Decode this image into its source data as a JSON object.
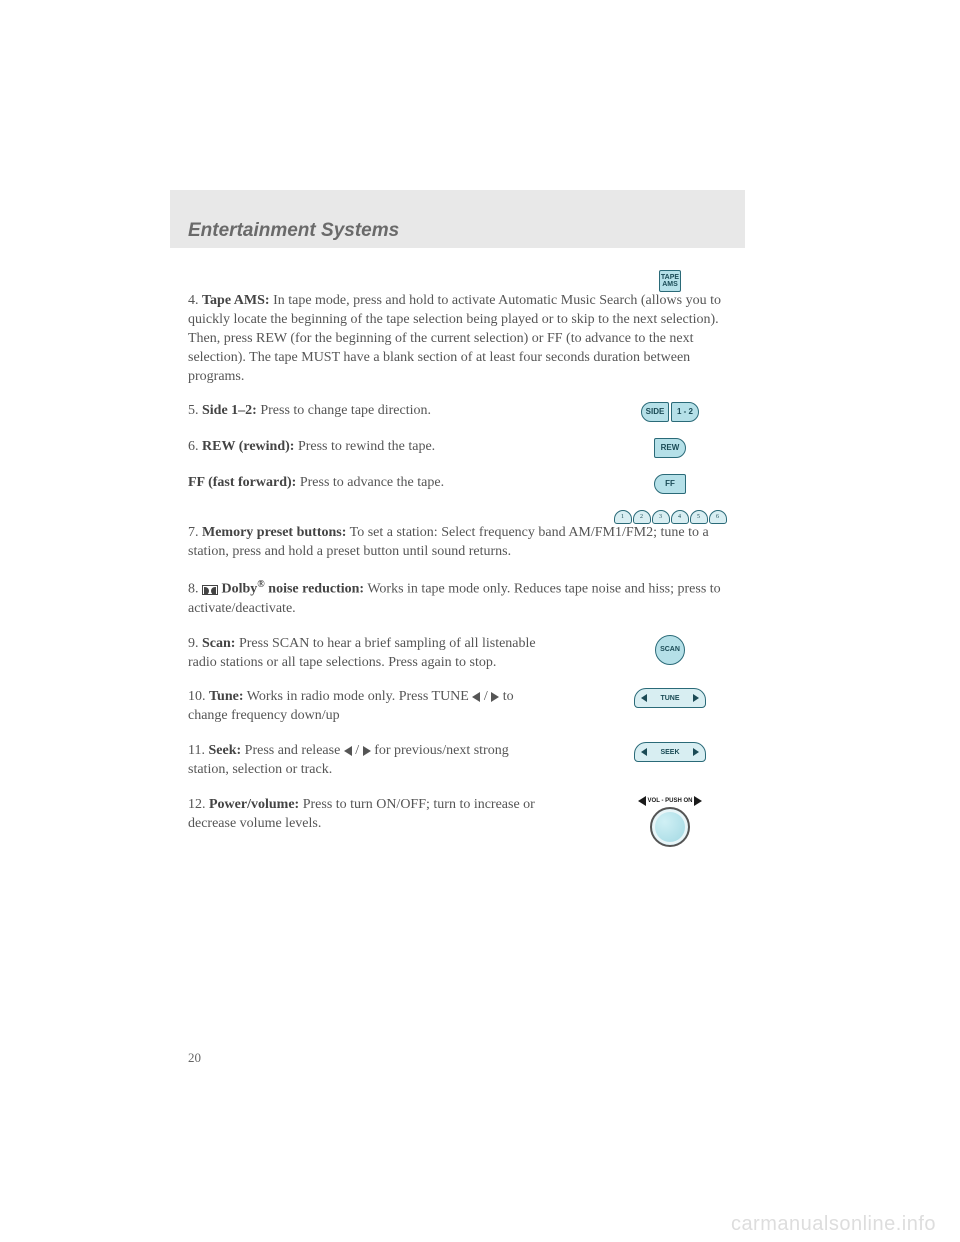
{
  "header": {
    "title": "Entertainment Systems"
  },
  "page_number": "20",
  "watermark": "carmanualsonline.info",
  "colors": {
    "header_bg": "#e8e8e8",
    "header_text": "#6a6a6a",
    "body_text": "#555555",
    "button_bg": "#b5e0e8",
    "button_border": "#2a6a78",
    "watermark": "#dddddd"
  },
  "items": [
    {
      "num": "4.",
      "label": "Tape AMS:",
      "text_a": " In tape mode, press and hold to activate Automatic Music Search (allows you to quickly locate the beginning of the tape selection being played or to skip to the next selection). Then, press REW (for the beginning of the current selection) or FF (to advance to the next selection). The tape MUST have a blank section of at least four seconds duration between programs.",
      "icon": "ams",
      "icon_label": "TAPE AMS"
    },
    {
      "num": "5.",
      "label": "Side 1–2:",
      "text_a": " Press to change tape direction.",
      "icon": "side",
      "icon_label_a": "SIDE",
      "icon_label_b": "1 - 2"
    },
    {
      "num": "6.",
      "label": "REW (rewind):",
      "text_a": " Press to rewind the tape.",
      "icon": "rew",
      "icon_label": "REW"
    },
    {
      "num": "",
      "label": "FF (fast forward):",
      "text_a": " Press to advance the tape.",
      "icon": "ff",
      "icon_label": "FF"
    },
    {
      "num": "7.",
      "label": "Memory preset buttons:",
      "text_a": " To set a station: Select frequency band AM/FM1/FM2; tune to a station, press and hold a preset button until sound returns.",
      "icon": "presets",
      "preset_labels": [
        "1",
        "2",
        "3",
        "4",
        "5",
        "6"
      ]
    },
    {
      "num": "8. ",
      "label": "Dolby",
      "reg": "®",
      "label2": " noise reduction:",
      "text_a": " Works in tape mode only. Reduces tape noise and hiss; press to activate/deactivate.",
      "icon": "dolby_inline"
    },
    {
      "num": "9.",
      "label": "Scan:",
      "text_a": " Press SCAN to hear a brief sampling of all listenable radio stations or all tape selections. Press again to stop.",
      "icon": "scan",
      "icon_label": "SCAN"
    },
    {
      "num": "10.",
      "label": "Tune:",
      "text_a": " Works in radio mode only. Press TUNE ",
      "text_b": " / ",
      "text_c": " to change frequency down/up",
      "icon": "tune",
      "icon_label": "TUNE"
    },
    {
      "num": "11.",
      "label": "Seek:",
      "text_a": " Press and release ",
      "text_b": " / ",
      "text_c": " for previous/next strong station, selection or track.",
      "icon": "seek",
      "icon_label": "SEEK"
    },
    {
      "num": "12.",
      "label": "Power/volume:",
      "text_a": " Press to turn ON/OFF; turn to increase or decrease volume levels.",
      "icon": "vol",
      "icon_label": "VOL - PUSH ON"
    }
  ]
}
